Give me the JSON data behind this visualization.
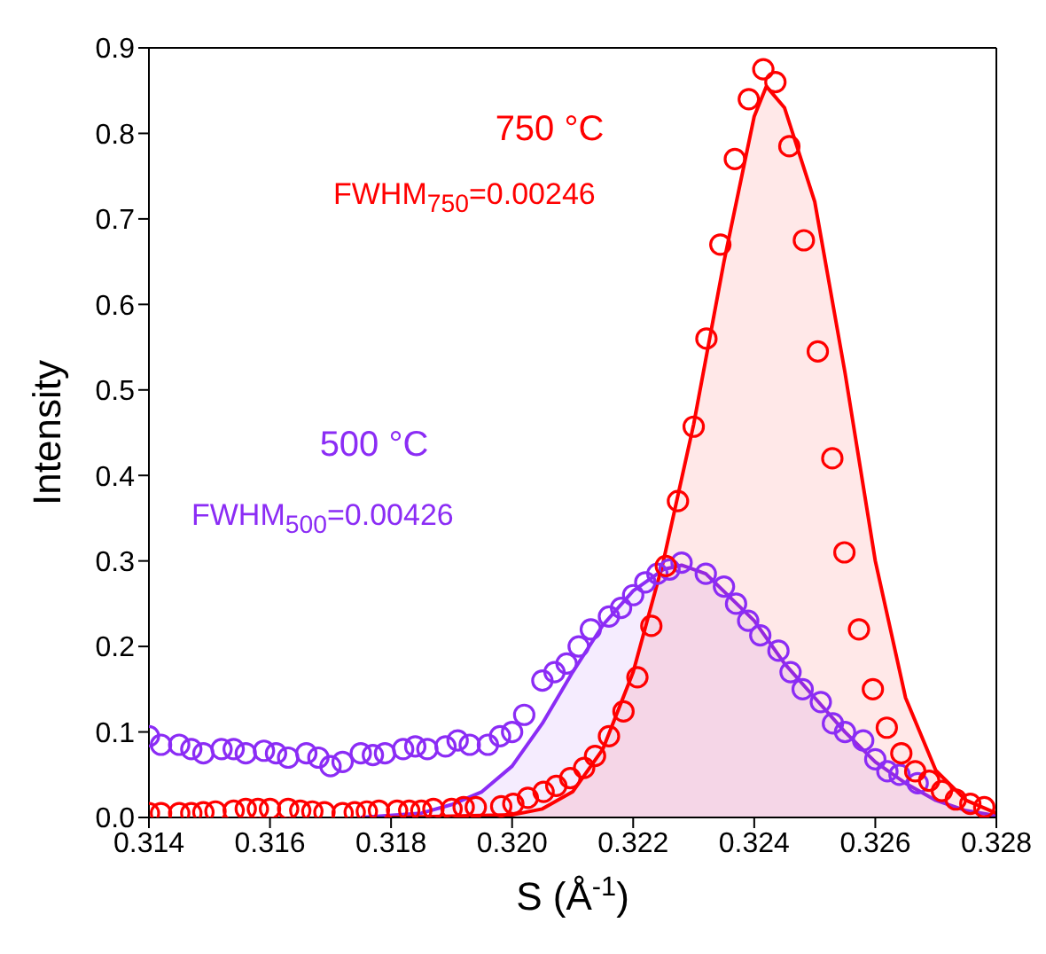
{
  "chart_data": {
    "type": "scatter",
    "xlabel": "S (Å$^{-1}$)",
    "ylabel": "Intensity",
    "xlim": [
      0.314,
      0.328
    ],
    "ylim": [
      0,
      0.9
    ],
    "xticks": [
      0.314,
      0.316,
      0.318,
      {
        "value": 0.32,
        "label": "0.320"
      },
      0.322,
      0.324,
      0.326,
      0.328
    ],
    "yticks": [
      {
        "value": 0,
        "label": "0.0"
      },
      {
        "value": 0.1,
        "label": "0.1"
      },
      {
        "value": 0.2,
        "label": "0.2"
      },
      {
        "value": 0.3,
        "label": "0.3"
      },
      {
        "value": 0.4,
        "label": "0.4"
      },
      {
        "value": 0.5,
        "label": "0.5"
      },
      {
        "value": 0.6,
        "label": "0.6"
      },
      {
        "value": 0.7,
        "label": "0.7"
      },
      {
        "value": 0.8,
        "label": "0.8"
      },
      {
        "value": 0.9,
        "label": "0.9"
      }
    ],
    "marker": "circle",
    "legend": false,
    "grid": false,
    "annotations": [
      "750 °C",
      "FWHM$_{750}$=0.00246",
      "500 °C",
      "FWHM$_{500}$=0.00426"
    ],
    "series": [
      {
        "type": "area",
        "marker": "none",
        "color": "#ff0000",
        "x": [
          0.318,
          0.32,
          0.3205,
          0.321,
          0.3215,
          0.322,
          0.3225,
          0.323,
          0.3235,
          0.324,
          0.3242,
          0.3245,
          0.325,
          0.3255,
          0.326,
          0.3265,
          0.327,
          0.3275,
          0.328
        ],
        "values": [
          0,
          0.003,
          0.01,
          0.03,
          0.08,
          0.17,
          0.3,
          0.46,
          0.65,
          0.82,
          0.855,
          0.83,
          0.72,
          0.52,
          0.3,
          0.14,
          0.055,
          0.02,
          0.005
        ]
      },
      {
        "type": "area",
        "marker": "none",
        "color": "#8b2cf5",
        "x": [
          0.3175,
          0.3185,
          0.319,
          0.3195,
          0.32,
          0.3205,
          0.321,
          0.3215,
          0.322,
          0.3225,
          0.3228,
          0.3232,
          0.324,
          0.3245,
          0.325,
          0.3255,
          0.326,
          0.3265,
          0.327,
          0.3275,
          0.328
        ],
        "values": [
          0,
          0.005,
          0.015,
          0.03,
          0.06,
          0.11,
          0.17,
          0.225,
          0.265,
          0.29,
          0.295,
          0.285,
          0.23,
          0.18,
          0.14,
          0.1,
          0.065,
          0.04,
          0.02,
          0.008,
          0.002
        ]
      },
      {
        "color": "#8b2cf5",
        "x": [
          0.314,
          0.3142,
          0.3145,
          0.3147,
          0.3149,
          0.3152,
          0.3154,
          0.3156,
          0.3159,
          0.3161,
          0.3163,
          0.3166,
          0.3168,
          0.317,
          0.3172,
          0.3175,
          0.3177,
          0.3179,
          0.3182,
          0.3184,
          0.3186,
          0.3189,
          0.3191,
          0.3193,
          0.3196,
          0.3198,
          0.32,
          0.3202,
          0.3205,
          0.3207,
          0.3209,
          0.3211,
          0.3213,
          0.3216,
          0.3218,
          0.322,
          0.3222,
          0.3224,
          0.3226,
          0.3228,
          0.3232,
          0.3235,
          0.3237,
          0.3239,
          0.3241,
          0.3244,
          0.3246,
          0.3248,
          0.3251,
          0.3253,
          0.3255,
          0.3258,
          0.326,
          0.3262,
          0.3264,
          0.3267
        ],
        "values": [
          0.095,
          0.085,
          0.085,
          0.08,
          0.075,
          0.08,
          0.08,
          0.075,
          0.078,
          0.075,
          0.07,
          0.075,
          0.07,
          0.06,
          0.065,
          0.075,
          0.073,
          0.075,
          0.08,
          0.083,
          0.08,
          0.083,
          0.09,
          0.085,
          0.085,
          0.095,
          0.1,
          0.12,
          0.16,
          0.17,
          0.18,
          0.2,
          0.22,
          0.235,
          0.245,
          0.26,
          0.275,
          0.285,
          0.29,
          0.298,
          0.285,
          0.27,
          0.25,
          0.23,
          0.213,
          0.195,
          0.17,
          0.15,
          0.135,
          0.11,
          0.1,
          0.09,
          0.068,
          0.054,
          0.05,
          0.04
        ]
      },
      {
        "color": "#ff0000",
        "x": [
          0.314,
          0.3142,
          0.3145,
          0.3147,
          0.3149,
          0.3151,
          0.3154,
          0.3156,
          0.3158,
          0.316,
          0.3163,
          0.3165,
          0.3167,
          0.3169,
          0.3172,
          0.3174,
          0.3176,
          0.3178,
          0.3181,
          0.3183,
          0.3185,
          0.3187,
          0.319,
          0.3192,
          0.3194,
          0.31982,
          0.32002,
          0.32026,
          0.32052,
          0.32073,
          0.32096,
          0.32119,
          0.32137,
          0.3216,
          0.32184,
          0.32207,
          0.3223,
          0.32254,
          0.32274,
          0.323,
          0.32321,
          0.32344,
          0.32368,
          0.32391,
          0.32415,
          0.32435,
          0.32458,
          0.32482,
          0.32505,
          0.32529,
          0.32549,
          0.32573,
          0.32596,
          0.32619,
          0.32643,
          0.32666,
          0.32689,
          0.3271,
          0.32733,
          0.32757,
          0.3278
        ],
        "values": [
          0.005,
          0.005,
          0.005,
          0.005,
          0.006,
          0.007,
          0.008,
          0.01,
          0.01,
          0.01,
          0.01,
          0.008,
          0.007,
          0.006,
          0.005,
          0.006,
          0.007,
          0.008,
          0.008,
          0.008,
          0.008,
          0.01,
          0.01,
          0.012,
          0.012,
          0.013,
          0.016,
          0.023,
          0.03,
          0.037,
          0.046,
          0.058,
          0.072,
          0.095,
          0.124,
          0.164,
          0.224,
          0.294,
          0.37,
          0.457,
          0.56,
          0.67,
          0.77,
          0.84,
          0.875,
          0.86,
          0.785,
          0.675,
          0.545,
          0.42,
          0.31,
          0.22,
          0.15,
          0.105,
          0.075,
          0.054,
          0.043,
          0.031,
          0.021,
          0.016,
          0.012
        ]
      }
    ]
  }
}
